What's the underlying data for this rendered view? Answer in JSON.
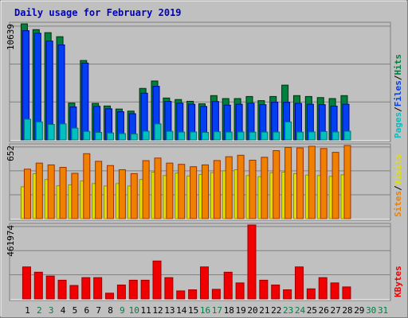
{
  "chart_data": {
    "type": "bar",
    "title": "Daily usage for February 2019",
    "days": [
      "1",
      "2",
      "3",
      "4",
      "5",
      "6",
      "7",
      "8",
      "9",
      "10",
      "11",
      "12",
      "13",
      "14",
      "15",
      "16",
      "17",
      "18",
      "19",
      "20",
      "21",
      "22",
      "23",
      "24",
      "25",
      "26",
      "27",
      "28",
      "29",
      "30",
      "31"
    ],
    "weekend_days": [
      2,
      3,
      9,
      10,
      16,
      17,
      23,
      24,
      30,
      31
    ],
    "panels": [
      {
        "id": "top",
        "ymax_label": "10639",
        "ymax": 10639,
        "side_labels": [
          {
            "text": "Pages",
            "color": "#00c0c0"
          },
          {
            "text": "/",
            "color": "#000000"
          },
          {
            "text": "Files",
            "color": "#0040f0"
          },
          {
            "text": "/",
            "color": "#000000"
          },
          {
            "text": "Hits",
            "color": "#008040"
          }
        ],
        "series": [
          {
            "name": "Hits",
            "color": "#008040",
            "values": [
              10639,
              10110,
              9830,
              9460,
              3380,
              7280,
              3350,
              3110,
              2830,
              2640,
              4720,
              5400,
              3840,
              3700,
              3540,
              3310,
              4060,
              3790,
              3790,
              3980,
              3600,
              3980,
              5020,
              4060,
              3980,
              3880,
              3790,
              4060,
              0,
              0,
              0
            ]
          },
          {
            "name": "Files",
            "color": "#0040f0",
            "values": [
              10010,
              9780,
              9060,
              8710,
              3020,
              7040,
              3080,
              2850,
              2580,
              2400,
              4280,
              4910,
              3530,
              3370,
              3270,
              3070,
              3520,
              3190,
              3270,
              3370,
              3230,
              3450,
              3450,
              3350,
              3270,
              3230,
              3100,
              3270,
              0,
              0,
              0
            ]
          },
          {
            "name": "Pages",
            "color": "#00c0c0",
            "values": [
              1900,
              1650,
              1420,
              1470,
              1080,
              780,
              690,
              640,
              580,
              540,
              800,
              1470,
              790,
              720,
              730,
              690,
              750,
              720,
              730,
              710,
              720,
              720,
              1650,
              720,
              740,
              770,
              730,
              800,
              0,
              0,
              0
            ]
          }
        ]
      },
      {
        "id": "middle",
        "ymax_label": "652",
        "ymax": 652,
        "side_labels": [
          {
            "text": "Sites",
            "color": "#f08000"
          },
          {
            "text": "/",
            "color": "#000000"
          },
          {
            "text": "Visits",
            "color": "#e0e000"
          }
        ],
        "series": [
          {
            "name": "Visits",
            "color": "#e0e000",
            "values": [
              284,
              400,
              349,
              293,
              301,
              336,
              313,
              291,
              313,
              291,
              349,
              414,
              384,
              406,
              380,
              393,
              410,
              426,
              436,
              384,
              374,
              410,
              414,
              401,
              388,
              384,
              377,
              391,
              0,
              0,
              0
            ]
          },
          {
            "name": "Sites",
            "color": "#f08000",
            "values": [
              441,
              495,
              479,
              457,
              404,
              579,
              511,
              473,
              436,
              401,
              517,
              540,
              495,
              484,
              463,
              479,
              518,
              552,
              565,
              521,
              547,
              606,
              635,
              630,
              645,
              625,
              591,
              652,
              0,
              0,
              0
            ]
          }
        ]
      },
      {
        "id": "bottom",
        "ymax_label": "461974",
        "ymax": 461974,
        "side_labels": [
          {
            "text": "KBytes",
            "color": "#f00000"
          }
        ],
        "series": [
          {
            "name": "KBytes",
            "color": "#f00000",
            "values": [
              200000,
              167000,
              143000,
              117000,
              84000,
              133000,
              133000,
              36000,
              87000,
              117000,
              117000,
              237000,
              133000,
              50000,
              57000,
              200000,
              60000,
              167000,
              100000,
              461974,
              117000,
              87000,
              57000,
              200000,
              63000,
              133000,
              100000,
              75000,
              0,
              0,
              0
            ]
          }
        ]
      }
    ]
  }
}
